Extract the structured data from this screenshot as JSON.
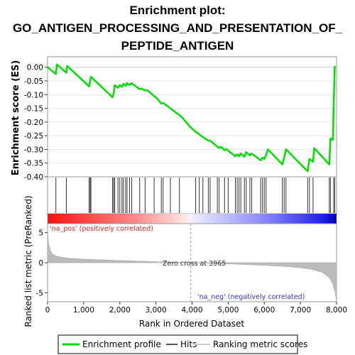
{
  "chart_data": {
    "type": "line",
    "title_lines": [
      "Enrichment plot:",
      "GO_ANTIGEN_PROCESSING_AND_PRESENTATION_OF_",
      "PEPTIDE_ANTIGEN"
    ],
    "es_panel": {
      "ylabel": "Enrichment score (ES)",
      "ylim": [
        -0.4,
        0.02
      ],
      "yticks": [
        "0.00",
        "-0.05",
        "-0.10",
        "-0.15",
        "-0.20",
        "-0.25",
        "-0.30",
        "-0.35",
        "-0.40"
      ],
      "ytick_values": [
        0.0,
        -0.05,
        -0.1,
        -0.15,
        -0.2,
        -0.25,
        -0.3,
        -0.35,
        -0.4
      ],
      "series_name": "Enrichment profile",
      "color": "#00dd00",
      "points": [
        [
          0,
          0.0
        ],
        [
          230,
          -0.025
        ],
        [
          260,
          0.01
        ],
        [
          520,
          -0.02
        ],
        [
          540,
          0.005
        ],
        [
          1150,
          -0.07
        ],
        [
          1180,
          -0.05
        ],
        [
          1200,
          -0.035
        ],
        [
          1800,
          -0.11
        ],
        [
          1830,
          -0.095
        ],
        [
          1860,
          -0.065
        ],
        [
          1950,
          -0.075
        ],
        [
          2000,
          -0.065
        ],
        [
          2060,
          -0.072
        ],
        [
          2100,
          -0.06
        ],
        [
          2160,
          -0.068
        ],
        [
          2200,
          -0.058
        ],
        [
          2270,
          -0.065
        ],
        [
          2330,
          -0.058
        ],
        [
          2550,
          -0.08
        ],
        [
          2600,
          -0.078
        ],
        [
          2700,
          -0.085
        ],
        [
          2750,
          -0.083
        ],
        [
          2950,
          -0.105
        ],
        [
          3000,
          -0.11
        ],
        [
          3150,
          -0.133
        ],
        [
          3200,
          -0.13
        ],
        [
          3700,
          -0.18
        ],
        [
          3965,
          -0.22
        ],
        [
          4100,
          -0.236
        ],
        [
          4200,
          -0.245
        ],
        [
          4300,
          -0.255
        ],
        [
          4450,
          -0.268
        ],
        [
          4500,
          -0.268
        ],
        [
          4700,
          -0.29
        ],
        [
          4750,
          -0.295
        ],
        [
          4800,
          -0.29
        ],
        [
          4900,
          -0.303
        ],
        [
          4950,
          -0.298
        ],
        [
          5000,
          -0.305
        ],
        [
          5200,
          -0.325
        ],
        [
          5250,
          -0.318
        ],
        [
          5300,
          -0.325
        ],
        [
          5350,
          -0.315
        ],
        [
          5450,
          -0.327
        ],
        [
          5500,
          -0.31
        ],
        [
          5600,
          -0.322
        ],
        [
          5650,
          -0.315
        ],
        [
          5900,
          -0.34
        ],
        [
          5950,
          -0.33
        ],
        [
          6000,
          -0.335
        ],
        [
          6050,
          -0.32
        ],
        [
          6100,
          -0.3
        ],
        [
          6500,
          -0.355
        ],
        [
          6550,
          -0.33
        ],
        [
          6600,
          -0.3
        ],
        [
          7200,
          -0.38
        ],
        [
          7250,
          -0.335
        ],
        [
          7350,
          -0.345
        ],
        [
          7380,
          -0.295
        ],
        [
          7800,
          -0.355
        ],
        [
          7830,
          -0.26
        ],
        [
          7900,
          -0.265
        ],
        [
          7920,
          -0.14
        ],
        [
          7950,
          0.005
        ]
      ]
    },
    "hits_panel": {
      "series_name": "Hits",
      "positions": [
        230,
        520,
        1150,
        1180,
        1200,
        1800,
        1830,
        1860,
        1950,
        2000,
        2060,
        2100,
        2160,
        2200,
        2270,
        2330,
        2550,
        2700,
        2950,
        3150,
        3200,
        3400,
        3650,
        4100,
        4200,
        4300,
        4450,
        4500,
        4700,
        4750,
        4900,
        5000,
        5200,
        5250,
        5300,
        5350,
        5450,
        5500,
        5600,
        5650,
        5900,
        5950,
        6000,
        6050,
        6500,
        6550,
        6600,
        7200,
        7250,
        7350,
        7800,
        7830,
        7920,
        7950
      ]
    },
    "ranked_panel": {
      "series_name": "Ranking metric scores",
      "ylabel": "Ranked list metric (PreRanked)",
      "ylim": [
        -6.5,
        6.5
      ],
      "yticks": [
        "5",
        "0",
        "-5"
      ],
      "ytick_values": [
        5,
        0,
        -5
      ],
      "zero_cross_label": "Zero cross at 3965",
      "zero_cross": 3965,
      "pos_label": "'na_pos' (positively correlated)",
      "neg_label": "'na_neg' (negatively correlated)",
      "profile": [
        [
          0,
          5.5
        ],
        [
          30,
          3.2
        ],
        [
          80,
          2.0
        ],
        [
          150,
          1.4
        ],
        [
          300,
          1.0
        ],
        [
          600,
          0.75
        ],
        [
          1000,
          0.6
        ],
        [
          1500,
          0.48
        ],
        [
          2000,
          0.38
        ],
        [
          2500,
          0.28
        ],
        [
          3000,
          0.18
        ],
        [
          3500,
          0.08
        ],
        [
          3965,
          0.0
        ],
        [
          4500,
          -0.1
        ],
        [
          5000,
          -0.2
        ],
        [
          5500,
          -0.32
        ],
        [
          6000,
          -0.45
        ],
        [
          6500,
          -0.6
        ],
        [
          7000,
          -0.85
        ],
        [
          7300,
          -1.1
        ],
        [
          7600,
          -1.6
        ],
        [
          7800,
          -2.5
        ],
        [
          7900,
          -3.6
        ],
        [
          7960,
          -5.0
        ],
        [
          8000,
          -6.5
        ]
      ]
    },
    "xaxis": {
      "label": "Rank in Ordered Dataset",
      "xlim": [
        0,
        8000
      ],
      "ticks": [
        "0",
        "1,000",
        "2,000",
        "3,000",
        "4,000",
        "5,000",
        "6,000",
        "7,000",
        "8,000"
      ],
      "tick_values": [
        0,
        1000,
        2000,
        3000,
        4000,
        5000,
        6000,
        7000,
        8000
      ]
    },
    "legend": {
      "placement": "bottom",
      "items": [
        {
          "name": "Enrichment profile",
          "color": "#00dd00"
        },
        {
          "name": "Hits",
          "color": "#555555"
        },
        {
          "name": "Ranking metric scores",
          "color": "#cccccc"
        }
      ]
    },
    "colors": {
      "positive": "#ff2222",
      "negative": "#2222ff",
      "pos_label": "#dd2222",
      "neg_label": "#3333cc"
    }
  }
}
